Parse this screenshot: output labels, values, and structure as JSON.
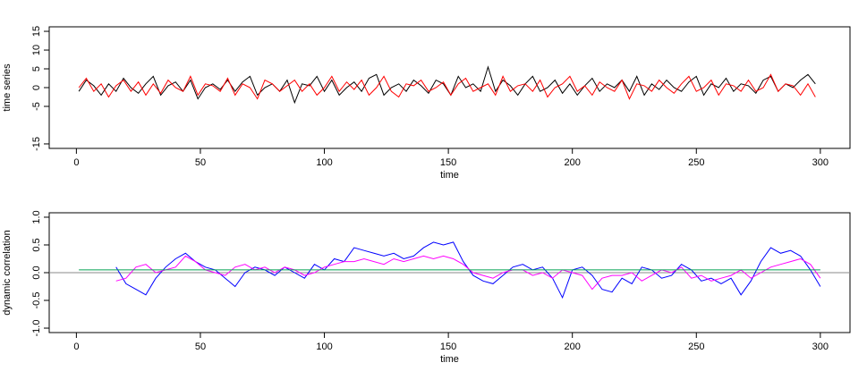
{
  "chart_data": [
    {
      "type": "line",
      "xlabel": "time",
      "ylabel": "time series",
      "x": [
        1,
        4,
        7,
        10,
        13,
        16,
        19,
        22,
        25,
        28,
        31,
        34,
        37,
        40,
        43,
        46,
        49,
        52,
        55,
        58,
        61,
        64,
        67,
        70,
        73,
        76,
        79,
        82,
        85,
        88,
        91,
        94,
        97,
        100,
        103,
        106,
        109,
        112,
        115,
        118,
        121,
        124,
        127,
        130,
        133,
        136,
        139,
        142,
        145,
        148,
        151,
        154,
        157,
        160,
        163,
        166,
        169,
        172,
        175,
        178,
        181,
        184,
        187,
        190,
        193,
        196,
        199,
        202,
        205,
        208,
        211,
        214,
        217,
        220,
        223,
        226,
        229,
        232,
        235,
        238,
        241,
        244,
        247,
        250,
        253,
        256,
        259,
        262,
        265,
        268,
        271,
        274,
        277,
        280,
        283,
        286,
        289,
        292,
        295,
        298
      ],
      "series": [
        {
          "color": "#000000",
          "values": [
            -1,
            2,
            0.5,
            -2,
            1,
            -1,
            2.5,
            0,
            -1.5,
            1,
            3,
            -2,
            0.5,
            1.5,
            -1,
            2,
            -3,
            0,
            1,
            -0.5,
            2,
            -1,
            1.5,
            3,
            -2,
            0,
            1,
            -1,
            2,
            -4,
            1,
            0.5,
            3,
            -1,
            2,
            -2,
            0,
            1.5,
            -1,
            2.5,
            3.5,
            -2,
            0,
            1,
            -1,
            2,
            0.5,
            -1.5,
            2,
            1,
            -2,
            3,
            0,
            1,
            -1,
            5.5,
            -1,
            2,
            0.5,
            -2,
            1,
            3,
            -1,
            0,
            2,
            -1.5,
            1,
            -2,
            0.5,
            2.5,
            -1,
            1,
            0,
            2,
            -1,
            3,
            -2,
            1,
            -0.5,
            2,
            0,
            -1,
            1.5,
            3,
            -2,
            1,
            0,
            2.5,
            -1,
            1,
            0.5,
            -1.5,
            2,
            3,
            -1,
            1,
            0,
            2,
            3.5,
            1
          ]
        },
        {
          "color": "#ff0000",
          "values": [
            0,
            2.5,
            -1,
            1,
            -2.5,
            0.5,
            2,
            -1,
            1.5,
            -2,
            1,
            -1.5,
            2,
            0,
            -1,
            3,
            -2,
            1,
            0.5,
            -1,
            2.5,
            -2,
            1,
            0,
            -3,
            2,
            1,
            -1,
            0.5,
            2,
            -1,
            1,
            -2,
            0,
            3,
            -1,
            1.5,
            -0.5,
            2,
            -2,
            0,
            3,
            -1,
            -2.5,
            1,
            0.5,
            2,
            -1,
            0,
            1.5,
            -2,
            1,
            2.5,
            -1,
            0,
            1,
            -2,
            3,
            -1,
            0.5,
            1,
            -1,
            2,
            -2.5,
            0,
            1,
            3,
            -1,
            0.5,
            -2,
            1.5,
            0,
            -1,
            2,
            -3,
            1,
            0.5,
            -1,
            2,
            0,
            -1.5,
            1,
            3,
            -1,
            0,
            2,
            -2,
            1,
            0.5,
            -1,
            2,
            -1,
            0,
            3.5,
            -1,
            1,
            0.5,
            -2,
            1,
            -2.5
          ]
        }
      ],
      "xlim": [
        -10.96,
        311.96
      ],
      "ylim": [
        -16.2,
        16.2
      ],
      "xticks": [
        0,
        50,
        100,
        150,
        200,
        250,
        300
      ],
      "yticks": [
        -15,
        -5,
        0,
        5,
        10,
        15
      ]
    },
    {
      "type": "line",
      "xlabel": "time",
      "ylabel": "dynamic correlation",
      "x": [
        16,
        20,
        24,
        28,
        32,
        36,
        40,
        44,
        48,
        52,
        56,
        60,
        64,
        68,
        72,
        76,
        80,
        84,
        88,
        92,
        96,
        100,
        104,
        108,
        112,
        116,
        120,
        124,
        128,
        132,
        136,
        140,
        144,
        148,
        152,
        156,
        160,
        164,
        168,
        172,
        176,
        180,
        184,
        188,
        192,
        196,
        200,
        204,
        208,
        212,
        216,
        220,
        224,
        228,
        232,
        236,
        240,
        244,
        248,
        252,
        256,
        260,
        264,
        268,
        272,
        276,
        280,
        284,
        288,
        292,
        296,
        300
      ],
      "series": [
        {
          "color": "#0000ff",
          "values": [
            0.1,
            -0.2,
            -0.3,
            -0.4,
            -0.1,
            0.1,
            0.25,
            0.35,
            0.2,
            0.1,
            0.05,
            -0.1,
            -0.25,
            0,
            0.1,
            0.05,
            -0.05,
            0.1,
            0,
            -0.1,
            0.15,
            0.05,
            0.25,
            0.2,
            0.45,
            0.4,
            0.35,
            0.3,
            0.35,
            0.25,
            0.3,
            0.45,
            0.55,
            0.5,
            0.55,
            0.2,
            -0.05,
            -0.15,
            -0.2,
            -0.05,
            0.1,
            0.15,
            0.05,
            0.1,
            -0.1,
            -0.45,
            0.05,
            0.1,
            -0.05,
            -0.3,
            -0.35,
            -0.1,
            -0.2,
            0.1,
            0.05,
            -0.1,
            -0.05,
            0.15,
            0.05,
            -0.15,
            -0.1,
            -0.2,
            -0.1,
            -0.4,
            -0.15,
            0.2,
            0.45,
            0.35,
            0.4,
            0.3,
            0.05,
            -0.25
          ]
        },
        {
          "color": "#ff00ff",
          "values": [
            -0.15,
            -0.1,
            0.1,
            0.15,
            0,
            0.05,
            0.1,
            0.3,
            0.2,
            0.05,
            0,
            -0.05,
            0.1,
            0.15,
            0.05,
            0.1,
            0,
            0.1,
            0.05,
            -0.05,
            0,
            0.1,
            0.15,
            0.2,
            0.2,
            0.25,
            0.2,
            0.15,
            0.25,
            0.2,
            0.25,
            0.3,
            0.25,
            0.3,
            0.25,
            0.15,
            0,
            -0.05,
            -0.1,
            0,
            0.05,
            0.05,
            -0.05,
            0,
            -0.1,
            0.05,
            0,
            -0.05,
            -0.3,
            -0.1,
            -0.05,
            -0.05,
            0,
            -0.15,
            -0.05,
            0.05,
            0,
            0.1,
            -0.1,
            -0.05,
            -0.15,
            -0.1,
            -0.05,
            0.05,
            -0.1,
            0,
            0.1,
            0.15,
            0.2,
            0.25,
            0.15,
            -0.1
          ]
        },
        {
          "color": "#00a050",
          "x": [
            1,
            300
          ],
          "values": [
            0.05,
            0.05
          ]
        }
      ],
      "reference_line": 0,
      "reference_color": "#888888",
      "xlim": [
        -10.96,
        311.96
      ],
      "ylim": [
        -1.08,
        1.08
      ],
      "xticks": [
        0,
        50,
        100,
        150,
        200,
        250,
        300
      ],
      "yticks": [
        {
          "value": -1,
          "label": "-1.0"
        },
        {
          "value": -0.5,
          "label": "-0.5"
        },
        {
          "value": 0,
          "label": "0.0"
        },
        {
          "value": 0.5,
          "label": "0.5"
        },
        {
          "value": 1,
          "label": "1.0"
        }
      ]
    }
  ]
}
